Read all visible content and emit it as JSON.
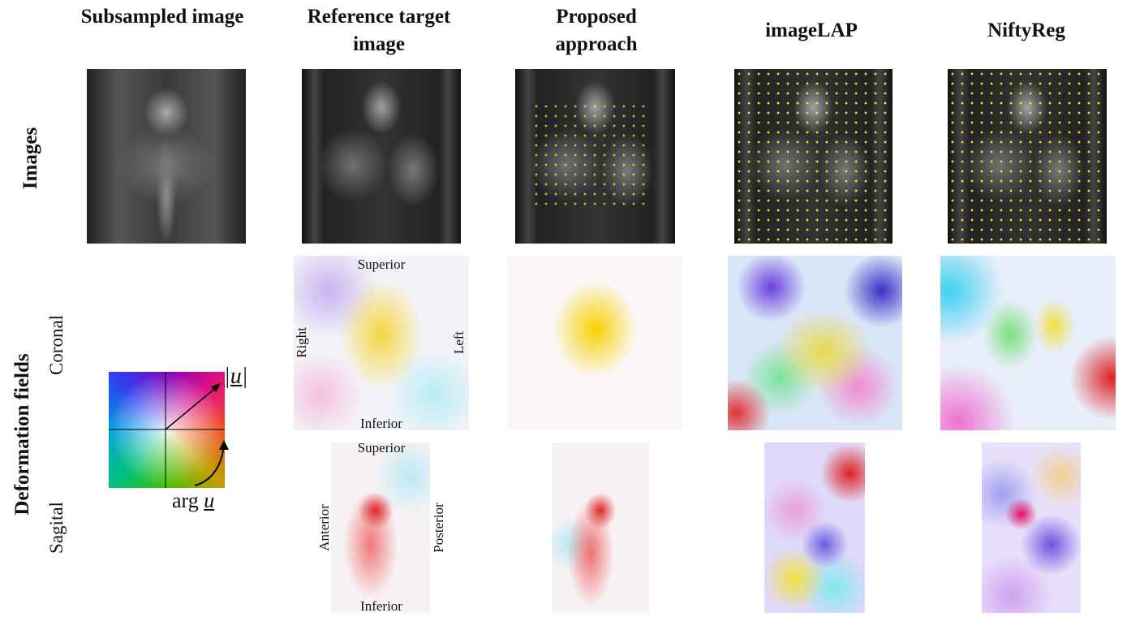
{
  "header": {
    "columns": [
      "Subsampled image",
      "Reference target image",
      "Proposed approach",
      "imageLAP",
      "NiftyReg"
    ]
  },
  "rows": {
    "images": "Images",
    "deformation": "Deformation fields",
    "coronal": "Coronal",
    "sagittal": "Sagital"
  },
  "coronal_labels": {
    "top": "Superior",
    "bottom": "Inferior",
    "left": "Right",
    "right": "Left"
  },
  "sagittal_labels": {
    "top": "Superior",
    "bottom": "Inferior",
    "left": "Anterior",
    "right": "Posterior"
  },
  "legend": {
    "magnitude": "|u|",
    "angle_prefix": "arg",
    "angle_symbol": "u"
  }
}
